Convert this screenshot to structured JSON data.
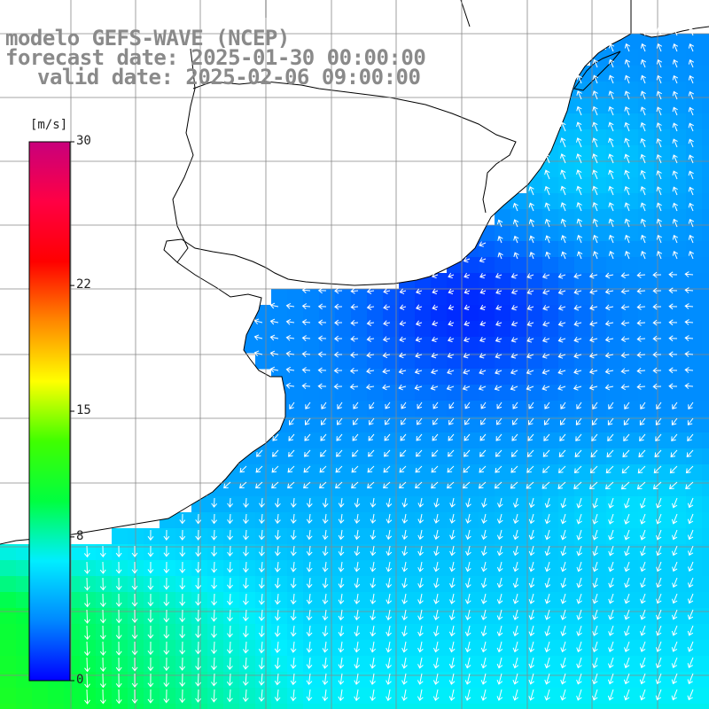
{
  "title": {
    "line1": "modelo GEFS-WAVE (NCEP)",
    "line2": "forecast date: 2025-01-30 00:00:00",
    "line3": "valid date: 2025-02-06 09:00:00"
  },
  "colorbar": {
    "unit": "[m/s]",
    "ticks": [
      {
        "value": 30,
        "label": "30"
      },
      {
        "value": 22,
        "label": "22"
      },
      {
        "value": 15,
        "label": "15"
      },
      {
        "value": 8,
        "label": "8"
      },
      {
        "value": 0,
        "label": "0"
      }
    ],
    "range": [
      0,
      30
    ],
    "colors": [
      "#0000ff",
      "#0088ff",
      "#00eeff",
      "#00ff40",
      "#40ff00",
      "#ffff00",
      "#ff8800",
      "#ff0000",
      "#ff0044",
      "#c8007c"
    ]
  },
  "map": {
    "variable": "wind speed",
    "land_color": "#ffffff",
    "coast_color": "#000000",
    "grid_color": "#888888",
    "arrow_color": "#ffffff"
  }
}
